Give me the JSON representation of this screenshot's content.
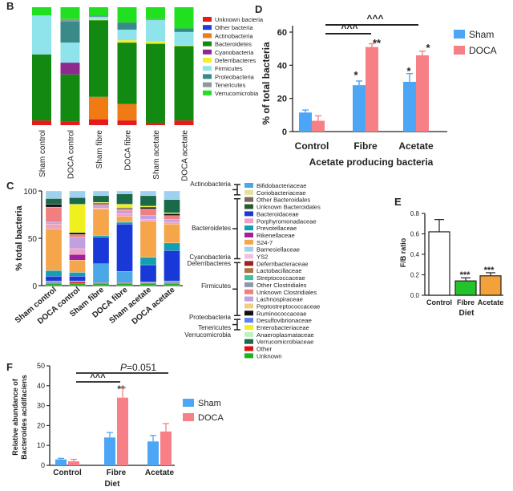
{
  "chart_data": [
    {
      "panel": "B",
      "type": "stacked-bar",
      "categories": [
        "Sham control",
        "DOCA control",
        "Sham fibre",
        "DOCA fibre",
        "Sham acetate",
        "DOCA acetate"
      ],
      "legend": [
        {
          "name": "Unknown bacteria",
          "color": "#e41a1c"
        },
        {
          "name": "Other bacteria",
          "color": "#1f3fd6"
        },
        {
          "name": "Actinobacteria",
          "color": "#f07a14"
        },
        {
          "name": "Bacteroidetes",
          "color": "#128a12"
        },
        {
          "name": "Cyanobacteria",
          "color": "#8e2a8e"
        },
        {
          "name": "Deferribacteres",
          "color": "#f5ec2a"
        },
        {
          "name": "Firmicutes",
          "color": "#8fe4ec"
        },
        {
          "name": "Proteobacteria",
          "color": "#3a8a8a"
        },
        {
          "name": "Tenericutes",
          "color": "#8a9a9a"
        },
        {
          "name": "Verrucomicrobia",
          "color": "#20e020"
        }
      ],
      "series": [
        {
          "name": "Unknown bacteria",
          "values": [
            4,
            3,
            5,
            4,
            2,
            4
          ]
        },
        {
          "name": "Other bacteria",
          "values": [
            0,
            0,
            0,
            0,
            0,
            0
          ]
        },
        {
          "name": "Actinobacteria",
          "values": [
            0,
            0,
            19,
            14,
            0,
            0
          ]
        },
        {
          "name": "Bacteroidetes",
          "values": [
            56,
            40,
            65,
            52,
            67,
            63
          ]
        },
        {
          "name": "Cyanobacteria",
          "values": [
            0,
            10,
            0,
            0,
            0,
            0
          ]
        },
        {
          "name": "Deferribacteres",
          "values": [
            0,
            0,
            1,
            2,
            2,
            1
          ]
        },
        {
          "name": "Firmicutes",
          "values": [
            33,
            17,
            2,
            9,
            18,
            11
          ]
        },
        {
          "name": "Proteobacteria",
          "values": [
            0,
            18,
            1,
            6,
            0,
            3
          ]
        },
        {
          "name": "Tenericutes",
          "values": [
            0,
            2,
            0,
            0,
            1,
            0
          ]
        },
        {
          "name": "Verrucomicrobia",
          "values": [
            7,
            10,
            7,
            13,
            10,
            18
          ]
        }
      ]
    },
    {
      "panel": "D",
      "type": "bar",
      "title": "Acetate producing bacteria",
      "ylabel": "% of total bacteria",
      "categories": [
        "Control",
        "Fibre",
        "Acetate"
      ],
      "ylim": [
        0,
        60
      ],
      "yticks": [
        "0",
        "20",
        "40",
        "60"
      ],
      "series": [
        {
          "name": "Sham",
          "color": "#4da6f5",
          "values": [
            11.5,
            28,
            30
          ],
          "errors": [
            1.5,
            2.5,
            5
          ]
        },
        {
          "name": "DOCA",
          "color": "#f77f86",
          "values": [
            6.5,
            51,
            46
          ],
          "errors": [
            3,
            2,
            2.5
          ]
        }
      ],
      "annotations": {
        "stars": [
          "*",
          "**",
          "*",
          "*"
        ],
        "bracket_labels": [
          "^^^",
          "^^^"
        ]
      }
    },
    {
      "panel": "C",
      "type": "stacked-bar",
      "ylabel": "% total bacteria",
      "categories": [
        "Sham control",
        "DOCA control",
        "Sham fibre",
        "DOCA fibre",
        "Sham acetate",
        "DOCA acetate"
      ],
      "ylim": [
        0,
        100
      ],
      "yticks": [
        "0",
        "50",
        "100"
      ],
      "legend": [
        {
          "name": "Bifidobacteriaceae",
          "color": "#4aa8e8"
        },
        {
          "name": "Coriobacteriaceae",
          "color": "#e8e0a0"
        },
        {
          "name": "Other Bacteroidales",
          "color": "#7a6a5a"
        },
        {
          "name": "Unknown Bacteroidales",
          "color": "#2a5a2a"
        },
        {
          "name": "Bacteroidaceae",
          "color": "#1838d8"
        },
        {
          "name": "Porphyromonadaceae",
          "color": "#f0a0c0"
        },
        {
          "name": "Prevotellaceae",
          "color": "#10a0b0"
        },
        {
          "name": "Rikenellaceae",
          "color": "#a020a0"
        },
        {
          "name": "S24-7",
          "color": "#f5a54a"
        },
        {
          "name": "Barnesiellaceae",
          "color": "#a0d0f0"
        },
        {
          "name": "YS2",
          "color": "#f0c0e0"
        },
        {
          "name": "Deferribacteraceae",
          "color": "#a02020"
        },
        {
          "name": "Lactobacillaceae",
          "color": "#b07040"
        },
        {
          "name": "Streptococcaceae",
          "color": "#40c0a0"
        },
        {
          "name": "Other Clostridiales",
          "color": "#8a9aaa"
        },
        {
          "name": "Unknown Clostridiales",
          "color": "#f08080"
        },
        {
          "name": "Lachnospiraceae",
          "color": "#c0a0e0"
        },
        {
          "name": "Peptostreptococcaceae",
          "color": "#f0d080"
        },
        {
          "name": "Ruminococcaceae",
          "color": "#101010"
        },
        {
          "name": "Desulfovibrionaceae",
          "color": "#6080f0"
        },
        {
          "name": "Enterobacteriaceae",
          "color": "#f0f020"
        },
        {
          "name": "Anaeroplasmataceae",
          "color": "#c0f0c0"
        },
        {
          "name": "Verrucomicrobiaceae",
          "color": "#1a6a4a"
        },
        {
          "name": "Other",
          "color": "#e01010"
        },
        {
          "name": "Unknown",
          "color": "#20b020"
        }
      ],
      "phyla": [
        "Actinobacteria",
        "Bacteroidetes",
        "Cyanobacteria",
        "Deferribacteres",
        "Firmicutes",
        "Proteobacteria",
        "Tenericutes",
        "Verrucomicrobia"
      ],
      "series": [
        {
          "name": "Unknown",
          "values": [
            2,
            2,
            2,
            2,
            2,
            2
          ]
        },
        {
          "name": "Other",
          "values": [
            1,
            2,
            1,
            1,
            1,
            1
          ]
        },
        {
          "name": "Bifidobacteriaceae",
          "values": [
            2,
            1,
            20,
            12,
            1,
            2
          ]
        },
        {
          "name": "Bacteroidaceae",
          "values": [
            5,
            5,
            28,
            50,
            18,
            32
          ]
        },
        {
          "name": "Prevotellaceae",
          "values": [
            6,
            4,
            2,
            2,
            8,
            8
          ]
        },
        {
          "name": "S24-7",
          "values": [
            44,
            13,
            28,
            6,
            38,
            20
          ]
        },
        {
          "name": "Rikenellaceae",
          "values": [
            0,
            6,
            0,
            0,
            0,
            0
          ]
        },
        {
          "name": "Porphyromonadaceae",
          "values": [
            5,
            6,
            1,
            3,
            2,
            2
          ]
        },
        {
          "name": "Lachnospiraceae",
          "values": [
            2,
            12,
            2,
            3,
            4,
            3
          ]
        },
        {
          "name": "Unknown Clostridiales",
          "values": [
            16,
            3,
            2,
            2,
            7,
            4
          ]
        },
        {
          "name": "Ruminococcaceae",
          "values": [
            3,
            2,
            1,
            1,
            2,
            2
          ]
        },
        {
          "name": "Enterobacteriaceae",
          "values": [
            0,
            30,
            1,
            4,
            1,
            1
          ]
        },
        {
          "name": "Verrucomicrobiaceae",
          "values": [
            6,
            7,
            7,
            11,
            11,
            14
          ]
        },
        {
          "name": "Barnesiellaceae",
          "values": [
            8,
            7,
            5,
            3,
            5,
            9
          ]
        }
      ]
    },
    {
      "panel": "E",
      "type": "bar",
      "ylabel": "F/B ratio",
      "xlabel": "Diet",
      "categories": [
        "Control",
        "Fibre",
        "Acetate"
      ],
      "ylim": [
        0,
        0.8
      ],
      "yticks": [
        "0.0",
        "0.2",
        "0.4",
        "0.6",
        "0.8"
      ],
      "values": [
        0.62,
        0.14,
        0.19
      ],
      "errors": [
        0.12,
        0.03,
        0.03
      ],
      "colors": [
        "#ffffff",
        "#22c32b",
        "#f3a13a"
      ],
      "annotations": {
        "stars": [
          "***",
          "***"
        ]
      }
    },
    {
      "panel": "F",
      "type": "bar",
      "ylabel": "Relative abundance of Bacteroides acidifaciens",
      "xlabel": "Diet",
      "categories": [
        "Control",
        "Fibre",
        "Acetate"
      ],
      "ylim": [
        0,
        50
      ],
      "yticks": [
        "0",
        "10",
        "20",
        "30",
        "40",
        "50"
      ],
      "series": [
        {
          "name": "Sham",
          "color": "#4da6f5",
          "values": [
            3,
            14,
            12
          ],
          "errors": [
            0.5,
            2.5,
            3
          ]
        },
        {
          "name": "DOCA",
          "color": "#f77f86",
          "values": [
            2,
            34,
            17
          ],
          "errors": [
            1,
            5,
            4
          ]
        }
      ],
      "annotations": {
        "stars": [
          "**"
        ],
        "bracket_labels": [
          "^^^",
          "P=0.051"
        ]
      }
    }
  ],
  "labels": {
    "panel_b": "B",
    "panel_c": "C",
    "panel_d": "D",
    "panel_e": "E",
    "panel_f": "F",
    "d_stars": [
      "*",
      "**",
      "*",
      "*"
    ],
    "d_brackets": [
      "^^^",
      "^^^"
    ],
    "e_stars": [
      "***",
      "***"
    ],
    "f_stars": "**",
    "f_brackets": [
      "^^^",
      "=0.051"
    ],
    "f_p_italic": "P",
    "f_ylabel_lines": [
      "Relative abundance of",
      "Bacteroides acidifaciens"
    ],
    "diet": "Diet"
  }
}
